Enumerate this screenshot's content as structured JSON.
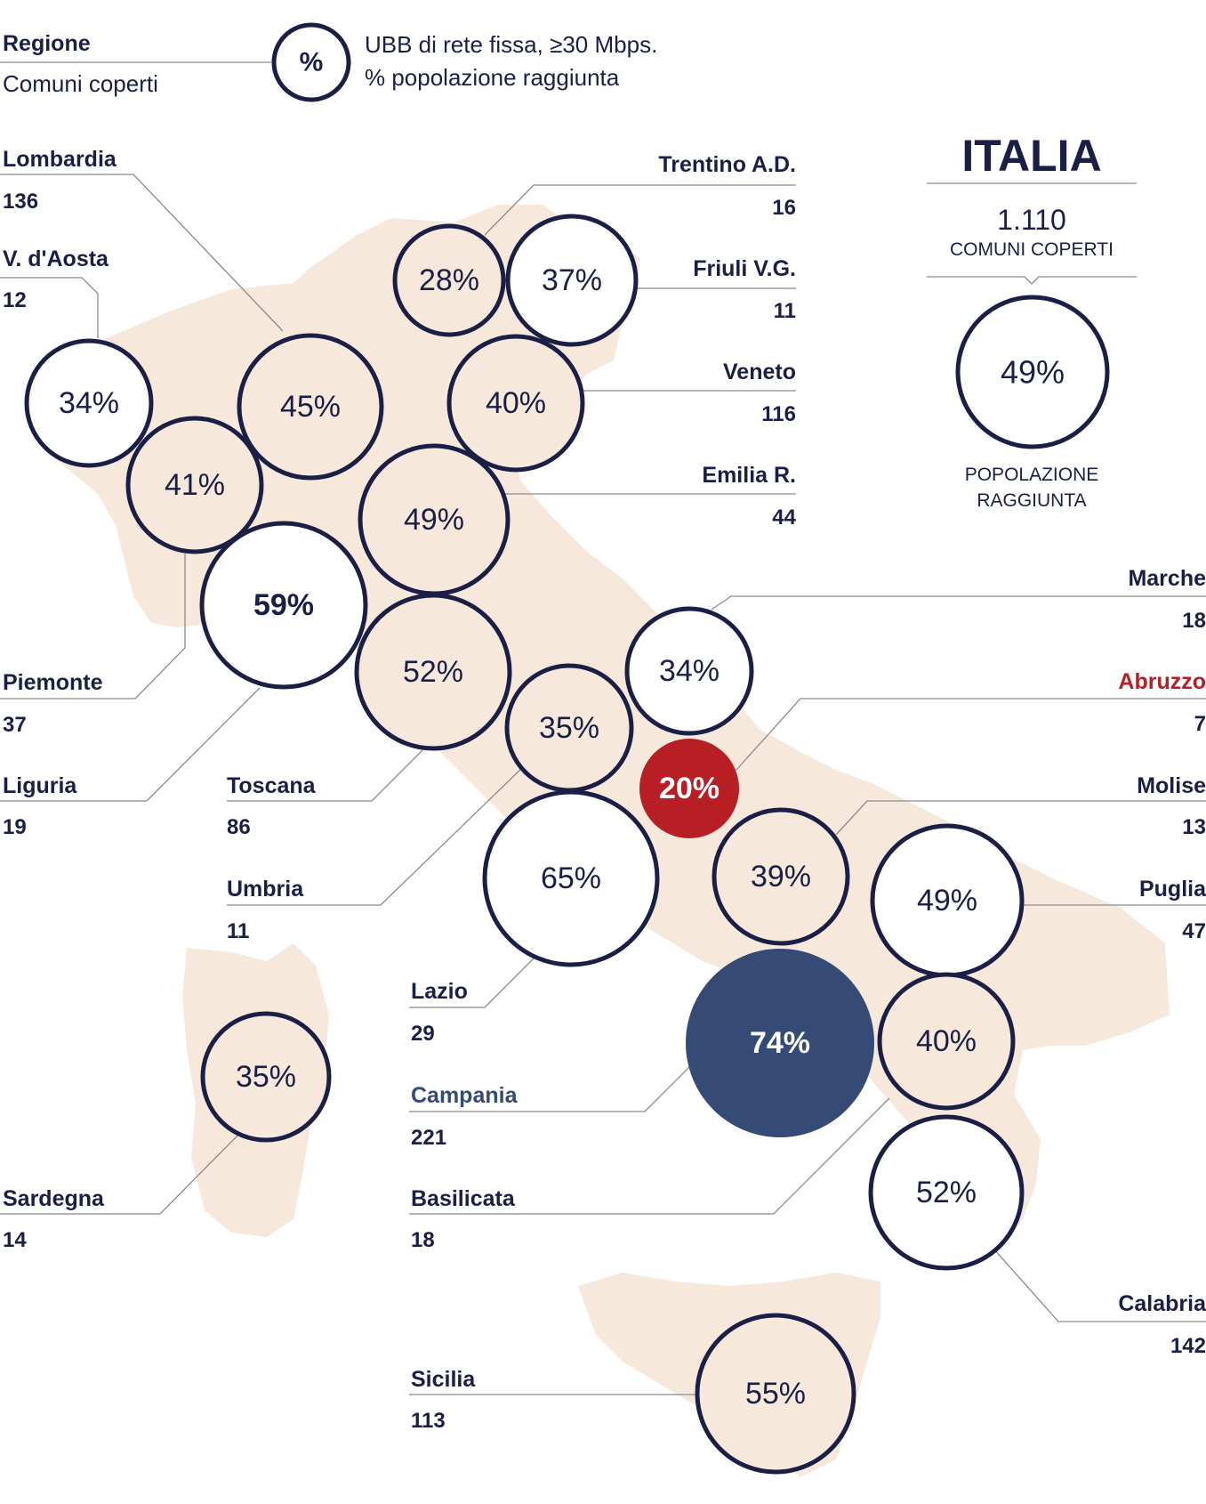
{
  "legend": {
    "region_label": "Regione",
    "count_label": "Comuni coperti",
    "symbol": "%",
    "line1": "UBB di rete fissa, ≥30 Mbps.",
    "line2": "% popolazione raggiunta"
  },
  "italia": {
    "title": "ITALIA",
    "count": "1.110",
    "count_label": "COMUNI COPERTI",
    "pct": "49%",
    "pct_label_1": "POPOLAZIONE",
    "pct_label_2": "RAGGIUNTA"
  },
  "colors": {
    "ink": "#1b1f45",
    "map_fill": "#f6e9dc",
    "abruzzo": "#b81f25",
    "campania": "#354a74",
    "leader": "#8a8a8a"
  },
  "regions": [
    {
      "id": "lombardia",
      "name": "Lombardia",
      "count": "136",
      "pct": "45%"
    },
    {
      "id": "valdaosta",
      "name": "V. d'Aosta",
      "count": "12",
      "pct": "34%"
    },
    {
      "id": "trentino",
      "name": "Trentino A.D.",
      "count": "16",
      "pct": "28%"
    },
    {
      "id": "friuli",
      "name": "Friuli V.G.",
      "count": "11",
      "pct": "37%"
    },
    {
      "id": "veneto",
      "name": "Veneto",
      "count": "116",
      "pct": "40%"
    },
    {
      "id": "emilia",
      "name": "Emilia R.",
      "count": "44",
      "pct": "49%"
    },
    {
      "id": "piemonte",
      "name": "Piemonte",
      "count": "37",
      "pct": "41%"
    },
    {
      "id": "liguria",
      "name": "Liguria",
      "count": "19",
      "pct": "59%"
    },
    {
      "id": "toscana",
      "name": "Toscana",
      "count": "86",
      "pct": "52%"
    },
    {
      "id": "umbria",
      "name": "Umbria",
      "count": "11",
      "pct": "35%"
    },
    {
      "id": "marche",
      "name": "Marche",
      "count": "18",
      "pct": "34%"
    },
    {
      "id": "abruzzo",
      "name": "Abruzzo",
      "count": "7",
      "pct": "20%"
    },
    {
      "id": "molise",
      "name": "Molise",
      "count": "13",
      "pct": "39%"
    },
    {
      "id": "lazio",
      "name": "Lazio",
      "count": "29",
      "pct": "65%"
    },
    {
      "id": "puglia",
      "name": "Puglia",
      "count": "47",
      "pct": "49%"
    },
    {
      "id": "campania",
      "name": "Campania",
      "count": "221",
      "pct": "74%"
    },
    {
      "id": "basilicata",
      "name": "Basilicata",
      "count": "18",
      "pct": "40%"
    },
    {
      "id": "sardegna",
      "name": "Sardegna",
      "count": "14",
      "pct": "35%"
    },
    {
      "id": "calabria",
      "name": "Calabria",
      "count": "142",
      "pct": "52%"
    },
    {
      "id": "sicilia",
      "name": "Sicilia",
      "count": "113",
      "pct": "55%"
    }
  ]
}
